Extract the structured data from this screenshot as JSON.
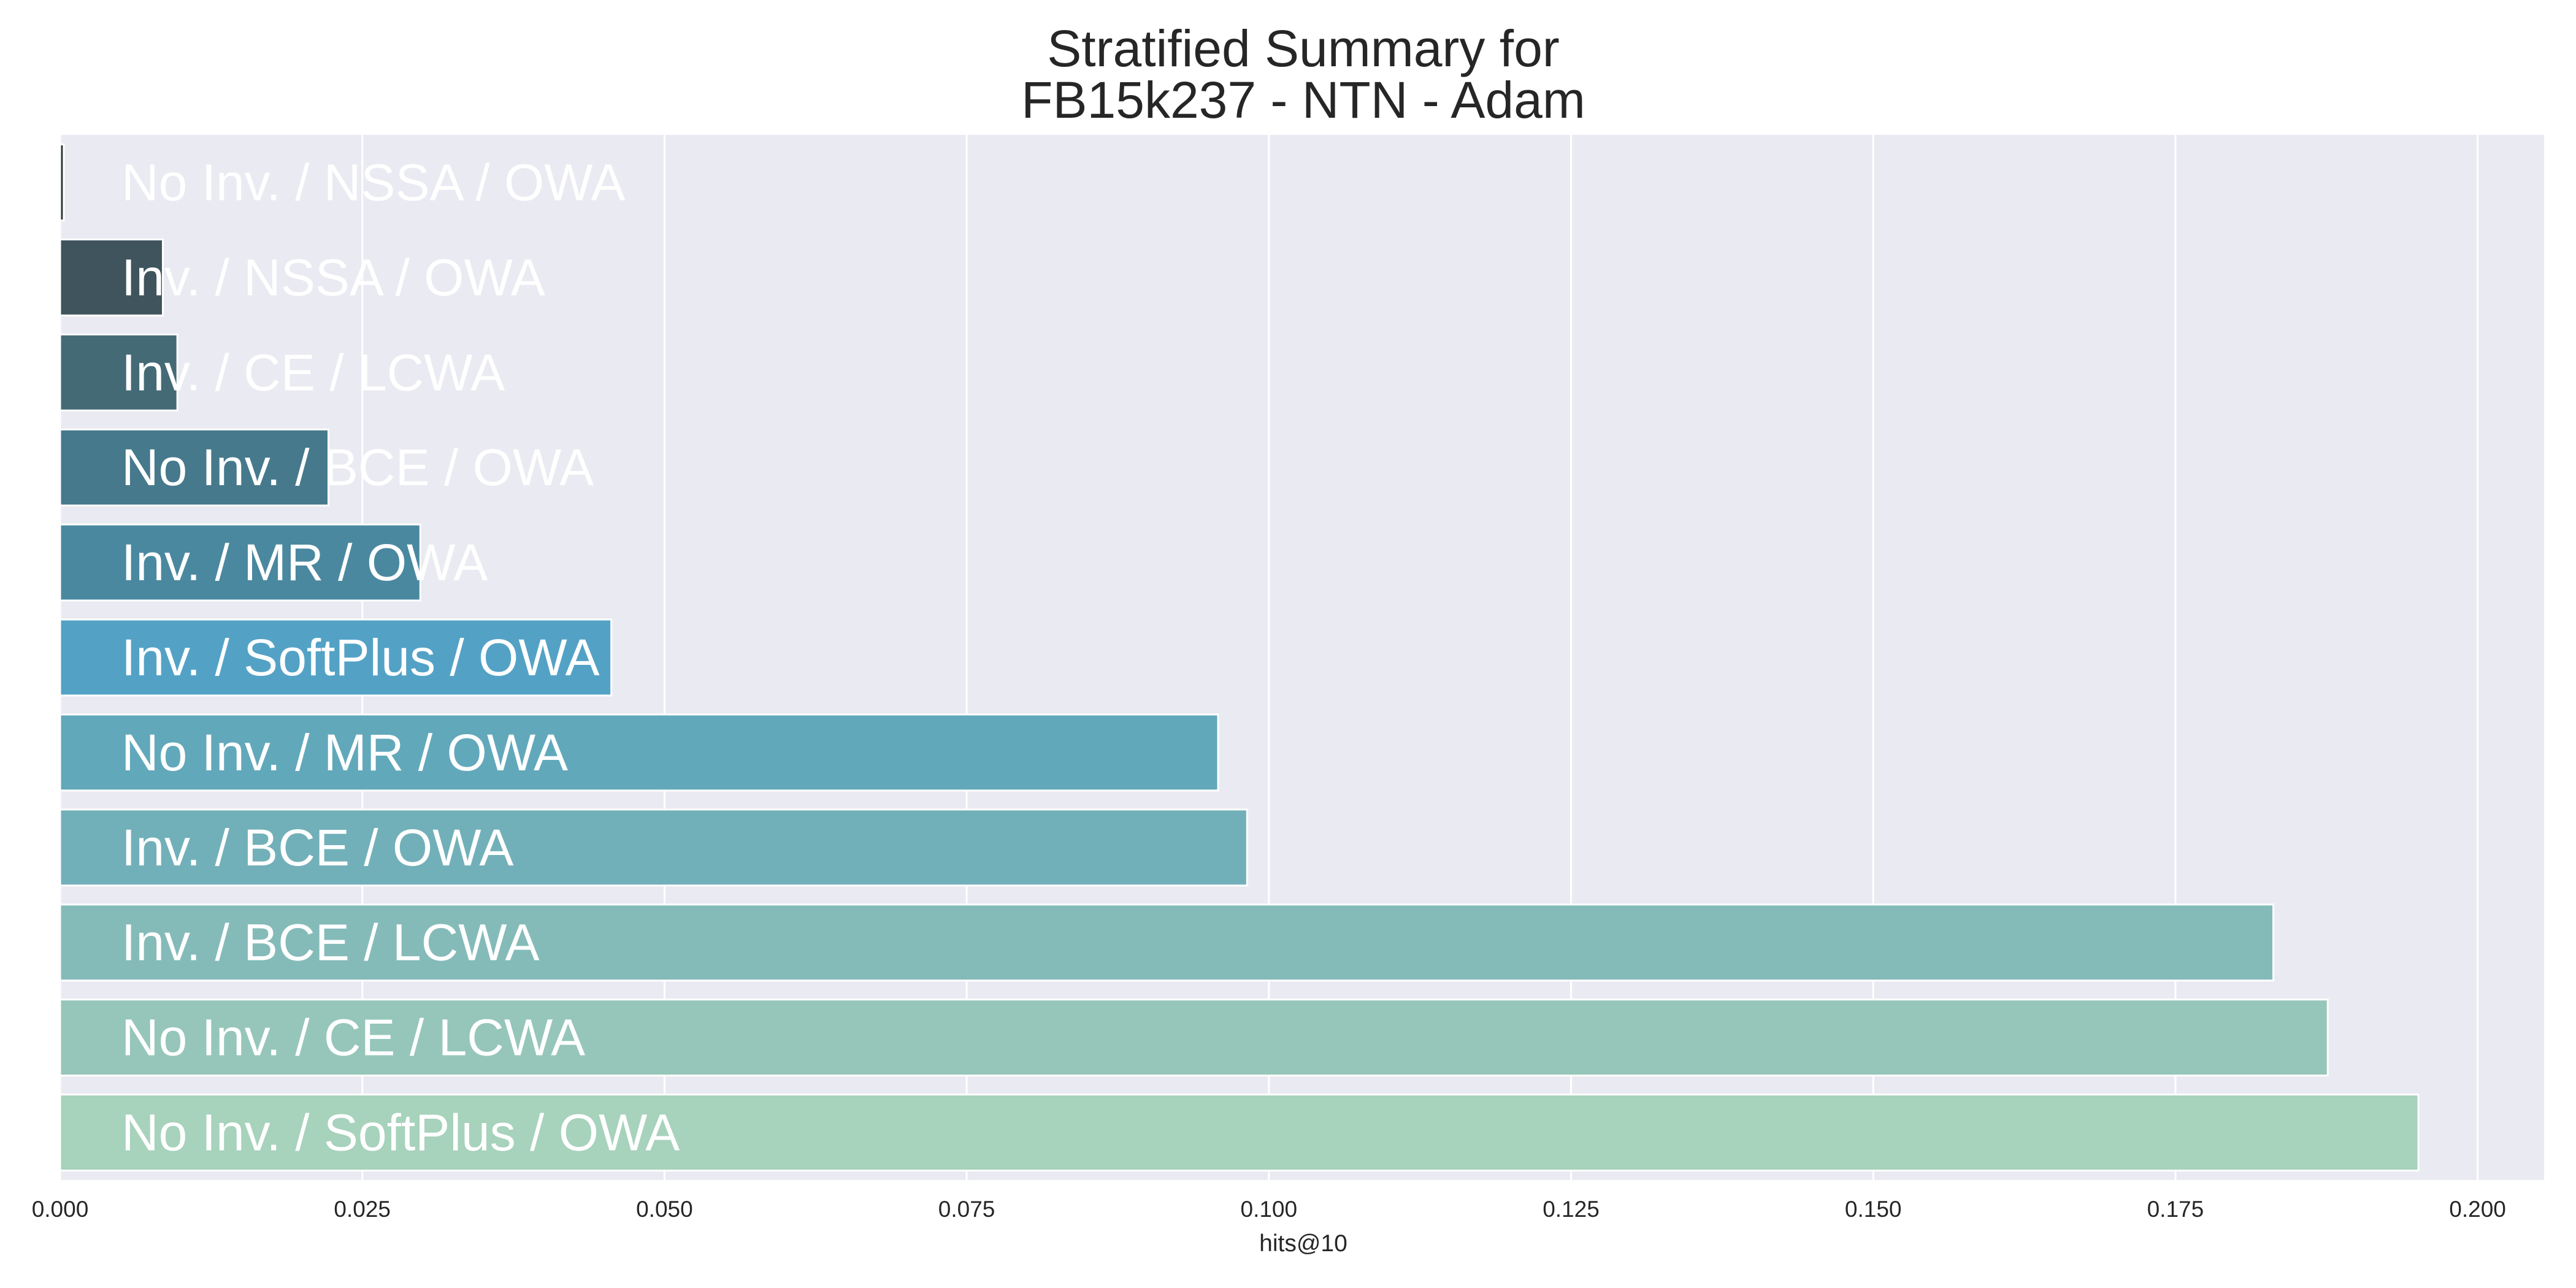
{
  "chart_data": {
    "type": "bar",
    "orientation": "horizontal",
    "title_lines": [
      "Stratified Summary for",
      "FB15k237 - NTN - Adam"
    ],
    "xlabel": "hits@10",
    "ylabel": "",
    "xlim": [
      0,
      0.2055
    ],
    "xticks": [
      "0.000",
      "0.025",
      "0.050",
      "0.075",
      "0.100",
      "0.125",
      "0.150",
      "0.175",
      "0.200"
    ],
    "grid": true,
    "categories": [
      "No Inv. / NSSA / OWA",
      "Inv. / NSSA / OWA",
      "Inv. / CE / LCWA",
      "No Inv. / BCE / OWA",
      "Inv. / MR / OWA",
      "Inv. / SoftPlus / OWA",
      "No Inv. / MR / OWA",
      "Inv. / BCE / OWA",
      "Inv. / BCE / LCWA",
      "No Inv. / CE / LCWA",
      "No Inv. / SoftPlus / OWA"
    ],
    "values": [
      0.0003,
      0.0085,
      0.0097,
      0.0222,
      0.0298,
      0.0456,
      0.0958,
      0.0982,
      0.1831,
      0.1876,
      0.1951
    ],
    "colors": [
      "#2e3436",
      "#3f545d",
      "#446a76",
      "#46798c",
      "#4a88a0",
      "#53a2c6",
      "#62a8bb",
      "#72b0b9",
      "#84bbb9",
      "#95c6b9",
      "#a7d2bc"
    ],
    "background": "#eaeaf2"
  }
}
